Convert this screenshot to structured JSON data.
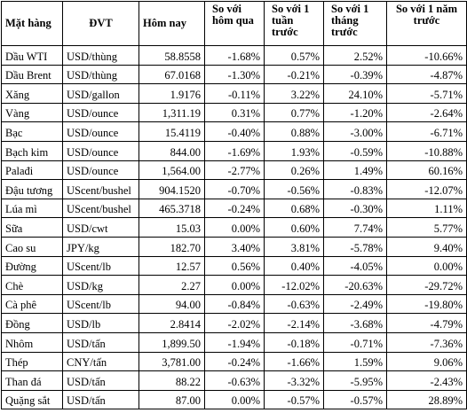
{
  "headers": {
    "item": "Mặt hàng",
    "unit": "ĐVT",
    "today": "Hôm nay",
    "vs_yesterday": "So với hôm qua",
    "vs_week": "So với 1 tuần trước",
    "vs_month": "So với 1 tháng trước",
    "vs_year": "So với 1 năm trước"
  },
  "rows": [
    {
      "item": "Dầu WTI",
      "unit": "USD/thùng",
      "today": "58.8558",
      "d": "-1.68%",
      "w": "0.57%",
      "m": "2.52%",
      "y": "-10.66%"
    },
    {
      "item": "Dầu Brent",
      "unit": "USD/thùng",
      "today": "67.0168",
      "d": "-1.30%",
      "w": "-0.21%",
      "m": "-0.39%",
      "y": "-4.87%"
    },
    {
      "item": "Xăng",
      "unit": "USD/gallon",
      "today": "1.9176",
      "d": "-0.11%",
      "w": "3.22%",
      "m": "24.10%",
      "y": "-5.71%"
    },
    {
      "item": "Vàng",
      "unit": "USD/ounce",
      "today": "1,311.19",
      "d": "0.31%",
      "w": "0.77%",
      "m": "-1.20%",
      "y": "-2.64%"
    },
    {
      "item": "Bạc",
      "unit": "USD/ounce",
      "today": "15.4119",
      "d": "-0.40%",
      "w": "0.88%",
      "m": "-3.00%",
      "y": "-6.71%"
    },
    {
      "item": "Bạch kim",
      "unit": "USD/ounce",
      "today": "844.00",
      "d": "-1.69%",
      "w": "1.93%",
      "m": "-0.59%",
      "y": "-10.88%"
    },
    {
      "item": "Palađi",
      "unit": "USD/ounce",
      "today": "1,564.00",
      "d": "-2.77%",
      "w": "0.26%",
      "m": "1.49%",
      "y": "60.16%"
    },
    {
      "item": "Đậu tương",
      "unit": "UScent/bushel",
      "today": "904.1520",
      "d": "-0.70%",
      "w": "-0.56%",
      "m": "-0.83%",
      "y": "-12.07%"
    },
    {
      "item": "Lúa mì",
      "unit": "UScent/bushel",
      "today": "465.3718",
      "d": "-0.24%",
      "w": "0.68%",
      "m": "-0.30%",
      "y": "1.11%"
    },
    {
      "item": "Sữa",
      "unit": "USD/cwt",
      "today": "15.03",
      "d": "0.00%",
      "w": "0.60%",
      "m": "7.74%",
      "y": "5.77%"
    },
    {
      "item": "Cao su",
      "unit": "JPY/kg",
      "today": "182.70",
      "d": "3.40%",
      "w": "3.81%",
      "m": "-5.78%",
      "y": "9.40%"
    },
    {
      "item": "Đường",
      "unit": "UScent/lb",
      "today": "12.57",
      "d": "0.56%",
      "w": "0.40%",
      "m": "-4.05%",
      "y": "0.00%"
    },
    {
      "item": "Chè",
      "unit": "USD/kg",
      "today": "2.27",
      "d": "0.00%",
      "w": "-12.02%",
      "m": "-20.63%",
      "y": "-29.72%"
    },
    {
      "item": "Cà phê",
      "unit": "UScent/lb",
      "today": "94.00",
      "d": "-0.84%",
      "w": "-0.63%",
      "m": "-2.49%",
      "y": "-19.80%"
    },
    {
      "item": "Đồng",
      "unit": "USD/lb",
      "today": "2.8414",
      "d": "-2.02%",
      "w": "-2.14%",
      "m": "-3.68%",
      "y": "-4.79%"
    },
    {
      "item": "Nhôm",
      "unit": "USD/tấn",
      "today": "1,899.50",
      "d": "-1.94%",
      "w": "-0.18%",
      "m": "-0.71%",
      "y": "-7.36%"
    },
    {
      "item": "Thép",
      "unit": "CNY/tấn",
      "today": "3,781.00",
      "d": "-0.24%",
      "w": "-1.66%",
      "m": "1.59%",
      "y": "9.06%"
    },
    {
      "item": "Than đá",
      "unit": "USD/tấn",
      "today": "88.22",
      "d": "-0.63%",
      "w": "-3.32%",
      "m": "-5.95%",
      "y": "-2.43%"
    },
    {
      "item": "Quặng sắt",
      "unit": "USD/tấn",
      "today": "87.00",
      "d": "0.00%",
      "w": "-0.57%",
      "m": "-0.57%",
      "y": "28.89%"
    }
  ]
}
